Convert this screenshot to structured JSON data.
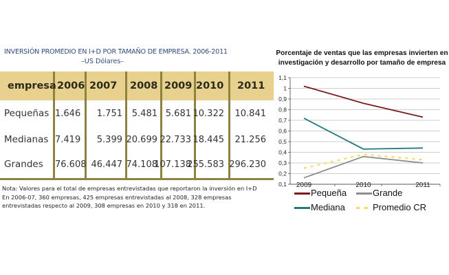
{
  "table": {
    "title": "INVERSIÓN PROMEDIO EN I+D POR TAMAÑO DE EMPRESA. 2006-2011",
    "subtitle": "–US Dólares–",
    "headers": [
      "empresa",
      "2006",
      "2007",
      "2008",
      "2009",
      "2010",
      "2011"
    ],
    "rows": [
      {
        "label": "Pequeñas",
        "values": [
          "1.646",
          "1.751",
          "5.481",
          "5.681",
          "10.322",
          "10.841"
        ]
      },
      {
        "label": "Medianas",
        "values": [
          "7.419",
          "5.399",
          "20.699",
          "22.733",
          "18.445",
          "21.256"
        ]
      },
      {
        "label": "Grandes",
        "values": [
          "76.608",
          "46.447",
          "74.108",
          "107.138",
          "255.583",
          "296.230"
        ]
      }
    ],
    "note_lines": [
      "Nota: Valores para el total de empresas entrevistadas que reportaron la inversión en I+D",
      "En 2006-07, 360 empresas, 425 empresas entrevistadas al 2008, 328 empresas",
      "entrevistadas respecto al 2009, 308 empresas en 2010 y 318 en 2011."
    ],
    "colors": {
      "title": "#2E4A7A",
      "header_band": "#E8D08E",
      "rule": "#8E8240"
    }
  },
  "chart_data": {
    "type": "line",
    "title": "Porcentaje de ventas que las empresas invierten en investigación y desarrollo  por tamaño de empresa",
    "title_lines": [
      "Porcentaje de ventas que las empresas invierten en",
      "investigación y desarrollo  por tamaño de empresa"
    ],
    "categories": [
      "2009",
      "2010",
      "2011"
    ],
    "y_ticks": [
      "0,1",
      "0,2",
      "0,3",
      "0,4",
      "0,5",
      "0,6",
      "0,7",
      "0,8",
      "0,9",
      "1",
      "1,1"
    ],
    "ylim": [
      0.1,
      1.1
    ],
    "grid": true,
    "legend_position": "bottom",
    "series": [
      {
        "name": "Pequeña",
        "values": [
          1.02,
          0.86,
          0.73
        ],
        "color": "#7B1A1A",
        "style": "solid"
      },
      {
        "name": "Grande",
        "values": [
          0.16,
          0.36,
          0.3
        ],
        "color": "#8C8C8C",
        "style": "solid"
      },
      {
        "name": "Mediana",
        "values": [
          0.72,
          0.43,
          0.44
        ],
        "color": "#1F7A78",
        "style": "solid"
      },
      {
        "name": "Promedio CR",
        "values": [
          0.25,
          0.38,
          0.33
        ],
        "color": "#F2DC58",
        "style": "dashed"
      }
    ]
  }
}
